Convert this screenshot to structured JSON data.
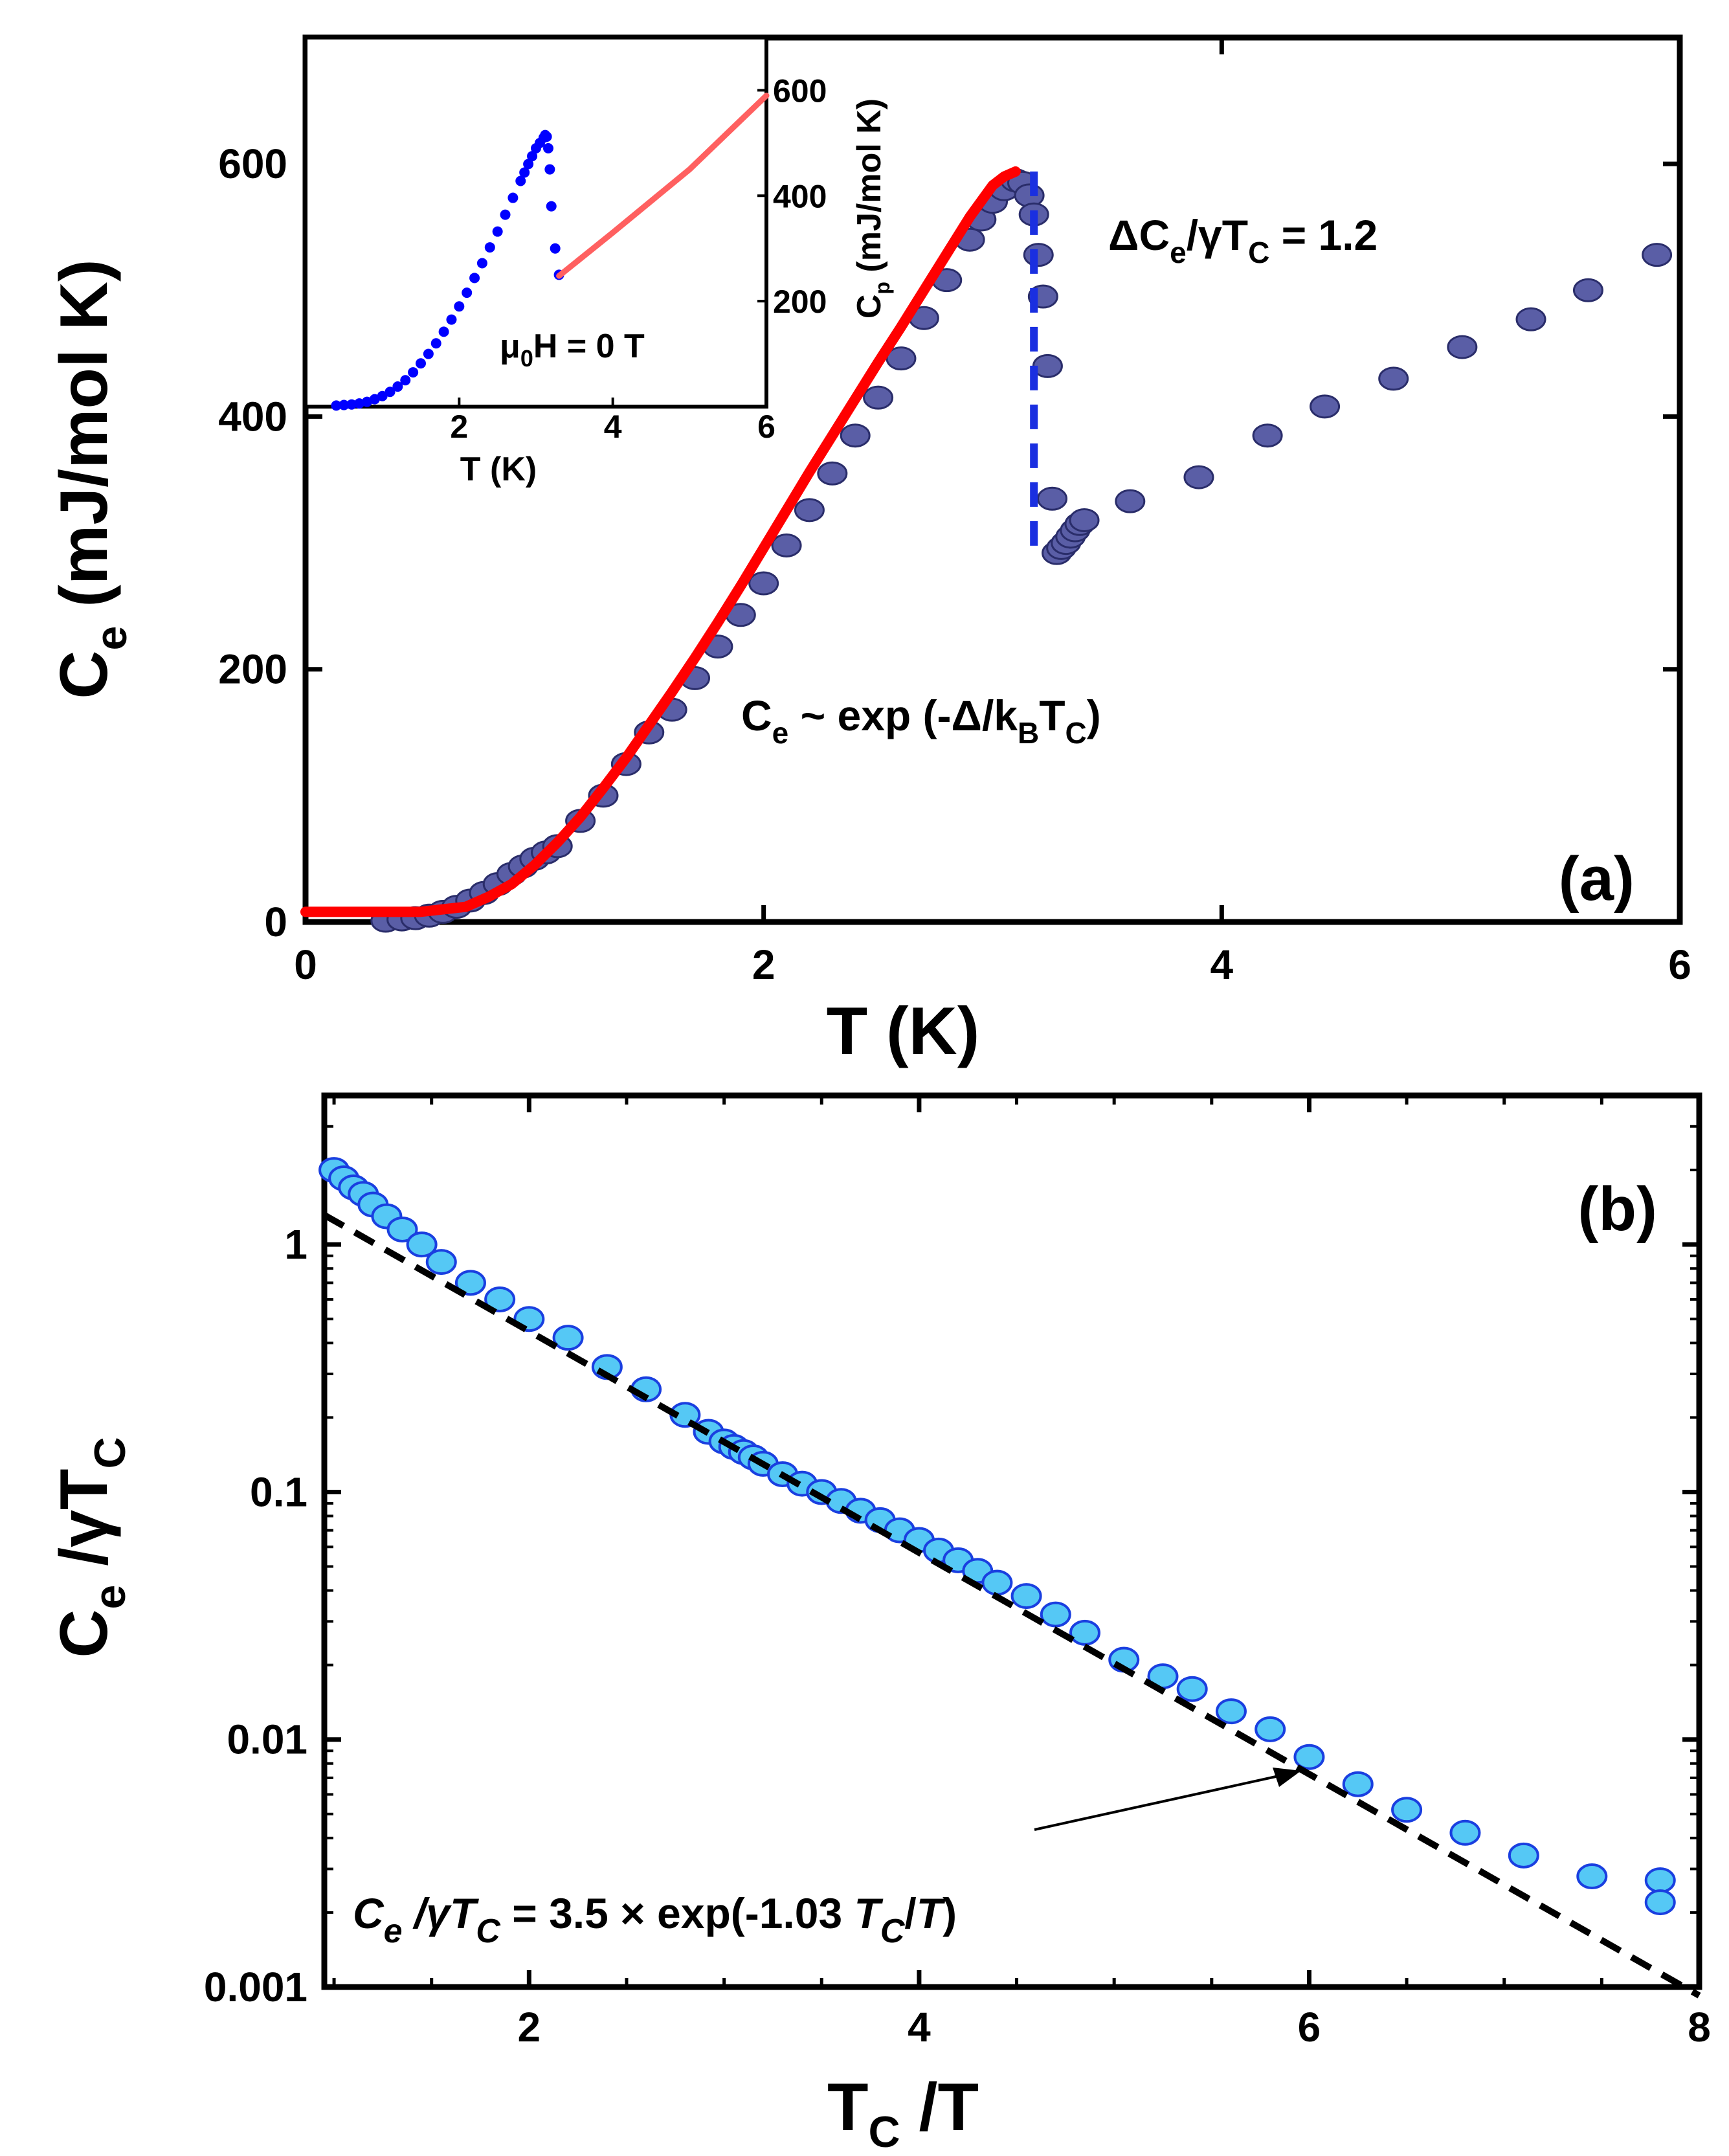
{
  "chart_data": [
    {
      "panel": "a",
      "type": "scatter",
      "panel_label": "(a)",
      "xlabel": "T (K)",
      "ylabel_main": "C",
      "ylabel_sub": "e",
      "ylabel_rest": " (mJ/mol K)",
      "xlim": [
        0,
        6
      ],
      "ylim": [
        0,
        700
      ],
      "xticks": [
        0,
        2,
        4,
        6
      ],
      "yticks": [
        0,
        200,
        400,
        600
      ],
      "colors": {
        "points": "#5a5ea6",
        "point_edge": "#2a2d6a",
        "fit": "#ff0000",
        "jump": "#1a2fe0"
      },
      "series": [
        {
          "name": "C_e data",
          "x": [
            0.35,
            0.42,
            0.48,
            0.54,
            0.6,
            0.66,
            0.72,
            0.78,
            0.84,
            0.9,
            0.95,
            1.0,
            1.05,
            1.1,
            1.2,
            1.3,
            1.4,
            1.5,
            1.6,
            1.7,
            1.8,
            1.9,
            2.0,
            2.1,
            2.2,
            2.3,
            2.4,
            2.5,
            2.6,
            2.7,
            2.8,
            2.9,
            2.95,
            3.0,
            3.05,
            3.1,
            3.13,
            3.16,
            3.18,
            3.2,
            3.22,
            3.24,
            3.26,
            3.28,
            3.3,
            3.32,
            3.34,
            3.36,
            3.38,
            3.4,
            3.6,
            3.9,
            4.2,
            4.45,
            4.75,
            5.05,
            5.35,
            5.6,
            5.9
          ],
          "y": [
            1,
            2,
            3,
            5,
            8,
            12,
            17,
            23,
            30,
            38,
            44,
            50,
            55,
            60,
            80,
            100,
            125,
            150,
            168,
            193,
            218,
            243,
            268,
            298,
            326,
            355,
            385,
            415,
            446,
            478,
            508,
            540,
            556,
            570,
            580,
            587,
            585,
            575,
            560,
            528,
            495,
            440,
            335,
            292,
            296,
            300,
            305,
            310,
            315,
            318,
            333,
            352,
            385,
            408,
            430,
            455,
            477,
            500,
            528
          ]
        }
      ],
      "fit_curve": {
        "name": "exponential fit",
        "x": [
          0.0,
          0.1,
          0.2,
          0.3,
          0.4,
          0.5,
          0.6,
          0.7,
          0.8,
          0.9,
          1.0,
          1.1,
          1.2,
          1.3,
          1.4,
          1.5,
          1.6,
          1.7,
          1.8,
          1.9,
          2.0,
          2.1,
          2.2,
          2.3,
          2.4,
          2.5,
          2.6,
          2.7,
          2.8,
          2.9,
          3.0,
          3.05,
          3.1
        ],
        "y": [
          8,
          8,
          8,
          8,
          8,
          8,
          10,
          12,
          20,
          30,
          45,
          63,
          83,
          106,
          130,
          156,
          182,
          209,
          237,
          266,
          296,
          326,
          356,
          385,
          414,
          443,
          471,
          500,
          529,
          558,
          583,
          590,
          594
        ]
      },
      "jump": {
        "x": 3.18,
        "y_top": 594,
        "y_bottom": 292
      },
      "annotations": [
        {
          "parts": [
            "ΔC",
            "e",
            "/γT",
            "C",
            " = 1.2"
          ]
        },
        {
          "parts": [
            "C",
            "e",
            " ~ exp (-Δ/k",
            "B",
            "T",
            "C",
            ")"
          ]
        }
      ],
      "inset": {
        "type": "scatter",
        "xlabel": "T (K)",
        "ylabel_main": "C",
        "ylabel_sub": "p",
        "ylabel_rest": " (mJ/mol K)",
        "annotation_parts": [
          "μ",
          "0",
          "H = 0 T"
        ],
        "xlim": [
          0,
          6
        ],
        "ylim": [
          0,
          700
        ],
        "xticks": [
          2,
          4,
          6
        ],
        "yticks": [
          200,
          400,
          600
        ],
        "colors": {
          "points": "#0000ff",
          "fit": "#ff6060"
        },
        "points": {
          "x": [
            0.4,
            0.5,
            0.6,
            0.7,
            0.8,
            0.9,
            1.0,
            1.1,
            1.2,
            1.3,
            1.4,
            1.5,
            1.6,
            1.7,
            1.8,
            1.9,
            2.0,
            2.1,
            2.2,
            2.3,
            2.4,
            2.5,
            2.6,
            2.7,
            2.8,
            2.85,
            2.9,
            2.95,
            3.0,
            3.05,
            3.1,
            3.12,
            3.14,
            3.16,
            3.18,
            3.2,
            3.25,
            3.3
          ],
          "y": [
            2,
            3,
            4,
            6,
            9,
            14,
            20,
            28,
            38,
            50,
            65,
            82,
            100,
            120,
            142,
            165,
            190,
            216,
            244,
            272,
            302,
            332,
            364,
            396,
            428,
            444,
            460,
            475,
            490,
            500,
            510,
            515,
            512,
            490,
            450,
            380,
            300,
            250
          ]
        },
        "fit": {
          "x": [
            3.3,
            4.0,
            5.0,
            6.0
          ],
          "y": [
            248,
            330,
            450,
            590
          ]
        }
      }
    },
    {
      "panel": "b",
      "type": "scatter",
      "panel_label": "(b)",
      "xlabel_main": "T",
      "xlabel_sub": "C",
      "xlabel_rest": " /T",
      "ylabel_main": "C",
      "ylabel_sub": "e",
      "ylabel_rest": " /γT",
      "ylabel_sub2": "C",
      "yscale": "log",
      "xlim": [
        0.95,
        8
      ],
      "ylim": [
        0.001,
        4
      ],
      "xticks": [
        2,
        4,
        6,
        8
      ],
      "yticks": [
        0.001,
        0.01,
        0.1,
        1
      ],
      "ytick_labels": [
        "0.001",
        "0.01",
        "0.1",
        "1"
      ],
      "colors": {
        "points": "#55c8f5",
        "point_edge": "#1a3fe0",
        "fit": "#000000"
      },
      "series": [
        {
          "name": "C_e/γT_C data",
          "x": [
            1.0,
            1.05,
            1.1,
            1.15,
            1.2,
            1.27,
            1.35,
            1.45,
            1.55,
            1.7,
            1.85,
            2.0,
            2.2,
            2.4,
            2.6,
            2.8,
            2.92,
            3.0,
            3.05,
            3.1,
            3.15,
            3.2,
            3.3,
            3.4,
            3.5,
            3.6,
            3.7,
            3.8,
            3.9,
            4.0,
            4.1,
            4.2,
            4.3,
            4.4,
            4.55,
            4.7,
            4.85,
            5.05,
            5.25,
            5.4,
            5.6,
            5.8,
            6.0,
            6.25,
            6.5,
            6.8,
            7.1,
            7.45,
            7.8,
            7.8
          ],
          "y": [
            2.0,
            1.85,
            1.7,
            1.6,
            1.45,
            1.3,
            1.15,
            1.0,
            0.85,
            0.7,
            0.6,
            0.5,
            0.42,
            0.32,
            0.26,
            0.205,
            0.175,
            0.16,
            0.152,
            0.145,
            0.138,
            0.13,
            0.118,
            0.108,
            0.1,
            0.092,
            0.084,
            0.077,
            0.07,
            0.064,
            0.058,
            0.053,
            0.048,
            0.043,
            0.038,
            0.032,
            0.027,
            0.021,
            0.018,
            0.016,
            0.013,
            0.011,
            0.0085,
            0.0066,
            0.0052,
            0.0042,
            0.0034,
            0.0028,
            0.0027,
            0.0022
          ]
        }
      ],
      "fit": {
        "A": 3.5,
        "b": -1.03,
        "x_range": [
          0.95,
          8.0
        ]
      },
      "annotation_parts": [
        "C",
        "e",
        "  /γT",
        "C",
        " = 3.5 × exp(-1.03 ",
        "T",
        "C",
        "/",
        "T",
        ")"
      ]
    }
  ]
}
